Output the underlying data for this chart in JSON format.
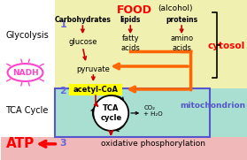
{
  "bg_color": "#ffffff",
  "cytosol_color": "#f0f0b0",
  "mito_color": "#a8dfd0",
  "atp_color": "#f0b8b8",
  "acetylcoa_box_color": "#ffff00",
  "title_food": "FOOD",
  "title_alcohol": "(alcohol)",
  "cytosol_label": "cytosol",
  "mito_label": "mitochondrion",
  "glycolysis_label": "Glycolysis",
  "tca_label": "TCA Cycle",
  "nadh_label": "NADH",
  "atp_label": "ATP",
  "label1": "1",
  "label2": "2",
  "label3": "3",
  "carbs_label": "Carbohydrates",
  "lipids_label": "lipids",
  "proteins_label": "proteins",
  "glucose_label": "glucose",
  "fatty_label": "fatty\nacids",
  "amino_label": "amino\nacids",
  "pyruvate_label": "pyruvate",
  "acetylcoa_label": "acetyl-CoA",
  "tca_cycle_label": "TCA\ncycle",
  "co2_label": "CO₂\n+ H₂O",
  "oxphos_label": "oxidative phosphorylation",
  "red_arrow": "#cc0000",
  "orange_arrow": "#ff6600",
  "dark_brown": "#660000",
  "blue_border": "#5555cc"
}
